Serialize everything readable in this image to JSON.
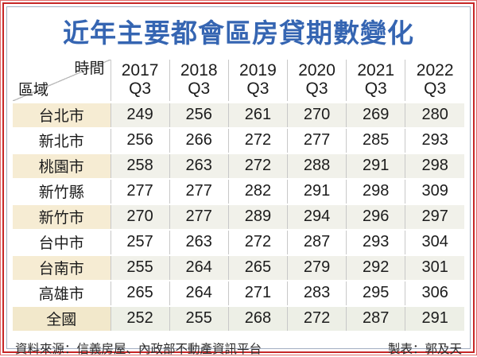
{
  "chart_data": {
    "type": "table",
    "title": "近年主要都會區房貸期數變化",
    "corner": {
      "top": "時間",
      "bottom": "區域"
    },
    "columns": [
      {
        "year": "2017",
        "quarter": "Q3"
      },
      {
        "year": "2018",
        "quarter": "Q3"
      },
      {
        "year": "2019",
        "quarter": "Q3"
      },
      {
        "year": "2020",
        "quarter": "Q3"
      },
      {
        "year": "2021",
        "quarter": "Q3"
      },
      {
        "year": "2022",
        "quarter": "Q3"
      }
    ],
    "rows": [
      {
        "region": "台北市",
        "values": [
          249,
          256,
          261,
          270,
          269,
          280
        ]
      },
      {
        "region": "新北市",
        "values": [
          256,
          266,
          272,
          277,
          285,
          293
        ]
      },
      {
        "region": "桃園市",
        "values": [
          258,
          263,
          272,
          288,
          291,
          298
        ]
      },
      {
        "region": "新竹縣",
        "values": [
          277,
          277,
          282,
          291,
          298,
          309
        ]
      },
      {
        "region": "新竹市",
        "values": [
          270,
          277,
          289,
          294,
          296,
          297
        ]
      },
      {
        "region": "台中市",
        "values": [
          257,
          263,
          272,
          287,
          293,
          304
        ]
      },
      {
        "region": "台南市",
        "values": [
          255,
          264,
          265,
          279,
          292,
          301
        ]
      },
      {
        "region": "高雄市",
        "values": [
          265,
          264,
          271,
          283,
          295,
          306
        ]
      },
      {
        "region": "全國",
        "values": [
          252,
          255,
          268,
          272,
          287,
          291
        ]
      }
    ],
    "footer": {
      "source": "資料來源：信義房屋、內政部不動產資訊平台",
      "credit": "製表：郭及天"
    },
    "colors": {
      "title_blue": "#3565b2",
      "rule_gold": "#dfae00",
      "frame_red": "#c62828",
      "frame_gray": "#a3aec2",
      "region_cream": "#f6ecd3",
      "odd_row_tint": "#f1f1ea",
      "total_row_tint": "#edefe6"
    }
  }
}
